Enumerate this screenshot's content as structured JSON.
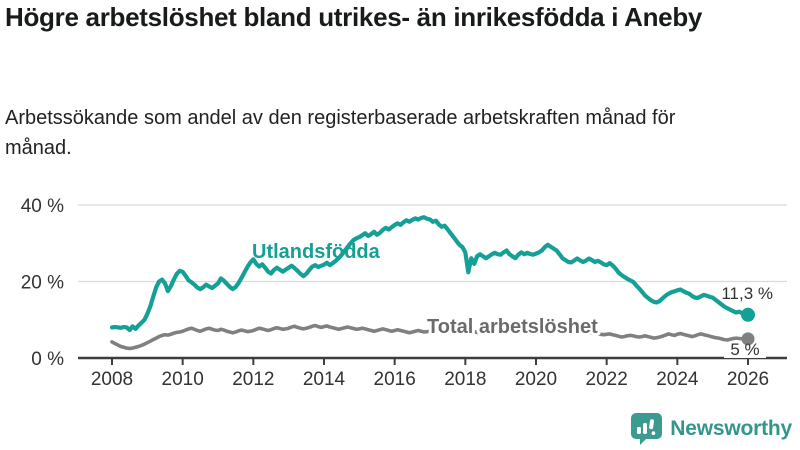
{
  "header": {
    "title": "Högre arbetslöshet bland utrikes- än inrikesfödda i Aneby",
    "subtitle": "Arbetssökande som andel av den registerbaserade arbetskraften månad för månad."
  },
  "chart_data": {
    "type": "line",
    "x_unit": "month",
    "x_start_year": 2008,
    "x_end_year": 2026,
    "x_tick_years": [
      2008,
      2010,
      2012,
      2014,
      2016,
      2018,
      2020,
      2022,
      2024,
      2026
    ],
    "y_ticks": [
      {
        "value": 0,
        "label": "0 %"
      },
      {
        "value": 20,
        "label": "20 %"
      },
      {
        "value": 40,
        "label": "40 %"
      }
    ],
    "ylim": [
      0,
      42
    ],
    "grid": "horizontal",
    "legend_position": "inline-labels",
    "series": [
      {
        "name": "Utlandsfödda",
        "color": "#14a096",
        "label_color": "#14a096",
        "end_label": "11,3 %",
        "last_value": 11.3,
        "values": [
          8.0,
          8.1,
          8.0,
          7.9,
          8.1,
          8.0,
          7.3,
          8.3,
          7.6,
          8.5,
          9.2,
          10.0,
          11.5,
          13.5,
          16.0,
          18.5,
          20.0,
          20.5,
          19.5,
          17.5,
          18.8,
          20.5,
          22.0,
          22.8,
          22.5,
          21.5,
          20.3,
          19.8,
          19.2,
          18.4,
          18.0,
          18.5,
          19.2,
          18.7,
          18.3,
          18.9,
          19.5,
          20.8,
          20.2,
          19.4,
          18.6,
          18.0,
          18.6,
          19.6,
          21.0,
          22.4,
          23.8,
          25.0,
          25.8,
          24.6,
          23.9,
          24.5,
          23.6,
          22.6,
          22.1,
          23.0,
          23.6,
          23.1,
          22.6,
          23.1,
          23.6,
          24.1,
          23.5,
          22.8,
          22.0,
          21.4,
          22.0,
          23.0,
          23.9,
          24.3,
          23.8,
          24.1,
          24.4,
          24.9,
          24.3,
          24.8,
          25.4,
          26.1,
          27.0,
          28.0,
          29.0,
          30.0,
          30.8,
          31.3,
          31.6,
          32.1,
          32.6,
          31.9,
          32.4,
          33.0,
          32.2,
          32.7,
          33.5,
          34.0,
          33.6,
          34.2,
          34.8,
          35.2,
          34.8,
          35.5,
          36.0,
          35.6,
          36.1,
          36.5,
          36.2,
          36.6,
          36.8,
          36.4,
          36.2,
          35.6,
          35.9,
          34.9,
          34.3,
          34.6,
          33.6,
          32.6,
          31.6,
          30.6,
          29.6,
          29.0,
          27.6,
          22.4,
          26.1,
          24.6,
          26.6,
          27.1,
          26.6,
          26.1,
          26.6,
          27.1,
          27.5,
          27.1,
          27.0,
          27.6,
          28.1,
          27.1,
          26.6,
          26.1,
          27.0,
          27.6,
          27.1,
          27.5,
          27.2,
          27.0,
          27.3,
          27.6,
          28.1,
          29.0,
          29.6,
          29.1,
          28.6,
          28.1,
          27.1,
          26.1,
          25.6,
          25.1,
          25.0,
          25.5,
          26.0,
          25.5,
          25.1,
          25.5,
          26.0,
          25.6,
          25.1,
          25.4,
          25.0,
          24.5,
          24.3,
          24.8,
          24.2,
          23.4,
          22.4,
          21.7,
          21.2,
          20.7,
          20.3,
          19.9,
          19.0,
          18.2,
          17.3,
          16.4,
          15.7,
          15.1,
          14.7,
          14.5,
          14.9,
          15.6,
          16.3,
          16.8,
          17.2,
          17.4,
          17.7,
          17.9,
          17.5,
          17.1,
          16.8,
          16.2,
          15.8,
          15.7,
          16.1,
          16.5,
          16.3,
          16.0,
          15.8,
          15.2,
          14.6,
          14.0,
          13.4,
          13.0,
          12.6,
          12.2,
          11.9,
          12.1,
          11.7,
          11.4,
          11.3
        ]
      },
      {
        "name": "Total arbetslöshet",
        "color": "#808080",
        "label_color": "#6b6b6b",
        "end_label": "5 %",
        "last_value": 5.0,
        "values": [
          4.2,
          3.8,
          3.4,
          3.0,
          2.8,
          2.6,
          2.5,
          2.6,
          2.8,
          3.0,
          3.3,
          3.6,
          4.0,
          4.4,
          4.8,
          5.2,
          5.6,
          5.9,
          6.1,
          6.0,
          6.2,
          6.5,
          6.7,
          6.8,
          7.0,
          7.3,
          7.6,
          7.8,
          7.5,
          7.2,
          7.0,
          7.3,
          7.6,
          7.8,
          7.5,
          7.3,
          7.2,
          7.5,
          7.3,
          7.0,
          6.8,
          6.6,
          6.8,
          7.1,
          7.3,
          7.1,
          6.9,
          7.0,
          7.2,
          7.5,
          7.8,
          7.6,
          7.4,
          7.2,
          7.4,
          7.7,
          7.9,
          7.7,
          7.5,
          7.6,
          7.8,
          8.1,
          8.3,
          8.0,
          7.8,
          7.6,
          7.8,
          8.0,
          8.3,
          8.5,
          8.2,
          8.0,
          8.2,
          8.4,
          8.1,
          7.9,
          7.7,
          7.5,
          7.7,
          7.9,
          8.1,
          7.9,
          7.7,
          7.5,
          7.6,
          7.8,
          7.6,
          7.4,
          7.2,
          7.0,
          7.2,
          7.4,
          7.6,
          7.4,
          7.2,
          7.0,
          7.2,
          7.4,
          7.2,
          7.0,
          6.8,
          6.6,
          6.8,
          7.0,
          7.2,
          7.0,
          6.8,
          6.9,
          7.0,
          7.2,
          7.0,
          6.8,
          6.6,
          6.4,
          6.6,
          6.8,
          7.0,
          6.9,
          6.8,
          7.0,
          7.1,
          7.3,
          7.1,
          6.9,
          6.7,
          6.5,
          6.7,
          6.9,
          7.1,
          7.0,
          6.9,
          7.0,
          7.1,
          7.3,
          7.2,
          7.0,
          6.9,
          6.8,
          7.0,
          7.2,
          7.4,
          7.3,
          7.2,
          7.3,
          7.5,
          7.7,
          8.0,
          8.4,
          8.6,
          8.5,
          8.4,
          8.3,
          8.1,
          7.9,
          7.7,
          7.6,
          7.5,
          7.4,
          7.2,
          7.0,
          6.9,
          6.7,
          6.6,
          6.5,
          6.4,
          6.3,
          6.2,
          6.1,
          6.2,
          6.3,
          6.1,
          5.9,
          5.7,
          5.5,
          5.6,
          5.8,
          5.9,
          5.8,
          5.6,
          5.5,
          5.6,
          5.8,
          5.6,
          5.4,
          5.2,
          5.3,
          5.5,
          5.7,
          6.0,
          6.3,
          6.1,
          5.9,
          6.2,
          6.4,
          6.2,
          6.0,
          5.8,
          5.6,
          5.8,
          6.1,
          6.3,
          6.1,
          5.9,
          5.7,
          5.5,
          5.3,
          5.2,
          5.0,
          4.8,
          4.7,
          4.9,
          5.1,
          5.2,
          5.1,
          5.0,
          5.0,
          5.0
        ]
      }
    ]
  },
  "footer": {
    "brand": "Newsworthy",
    "brand_color": "#32968c"
  },
  "colors": {
    "axis": "#3d3d3d",
    "grid": "#d9d9d9",
    "tick_text": "#333333",
    "value_label": "#333333",
    "background": "#ffffff"
  }
}
